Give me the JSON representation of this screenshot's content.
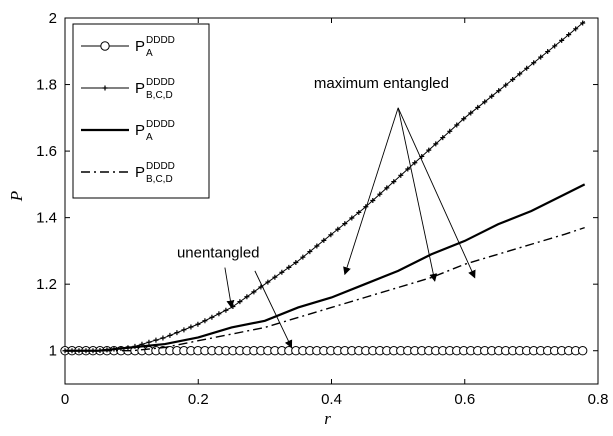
{
  "chart_data": {
    "type": "line",
    "xlabel": "r",
    "ylabel": "P",
    "xlim": [
      0,
      0.8
    ],
    "ylim": [
      0.9,
      2.0
    ],
    "xticks": [
      "0",
      "0.2",
      "0.4",
      "0.6",
      "0.8"
    ],
    "yticks": [
      "1",
      "1.2",
      "1.4",
      "1.6",
      "1.8",
      "2"
    ],
    "grid": false,
    "legend_position": "top-left",
    "series": [
      {
        "legend_main": "P",
        "legend_sup": "DDDD",
        "legend_sub": "A",
        "style": "circle-markers",
        "x": [
          0,
          0.1,
          0.2,
          0.3,
          0.4,
          0.5,
          0.6,
          0.7,
          0.78
        ],
        "y": [
          1.0,
          1.0,
          1.0,
          1.0,
          1.0,
          1.0,
          1.0,
          1.0,
          1.0
        ]
      },
      {
        "legend_main": "P",
        "legend_sup": "DDDD",
        "legend_sub": "B,C,D",
        "style": "star-markers",
        "x": [
          0,
          0.05,
          0.1,
          0.15,
          0.2,
          0.25,
          0.3,
          0.35,
          0.4,
          0.45,
          0.5,
          0.55,
          0.6,
          0.65,
          0.7,
          0.75,
          0.78
        ],
        "y": [
          1.0,
          1.0,
          1.01,
          1.04,
          1.08,
          1.13,
          1.2,
          1.27,
          1.35,
          1.43,
          1.52,
          1.61,
          1.7,
          1.78,
          1.86,
          1.94,
          1.99
        ]
      },
      {
        "legend_main": "P",
        "legend_sup": "DDDD",
        "legend_sub": "A",
        "style": "solid-thick",
        "x": [
          0,
          0.05,
          0.1,
          0.15,
          0.2,
          0.25,
          0.3,
          0.35,
          0.4,
          0.45,
          0.5,
          0.55,
          0.6,
          0.65,
          0.7,
          0.75,
          0.78
        ],
        "y": [
          1.0,
          1.0,
          1.01,
          1.02,
          1.04,
          1.07,
          1.09,
          1.13,
          1.16,
          1.2,
          1.24,
          1.29,
          1.33,
          1.38,
          1.42,
          1.47,
          1.5
        ]
      },
      {
        "legend_main": "P",
        "legend_sup": "DDDD",
        "legend_sub": "B,C,D",
        "style": "dash-dot",
        "x": [
          0,
          0.05,
          0.1,
          0.15,
          0.2,
          0.25,
          0.3,
          0.35,
          0.4,
          0.45,
          0.5,
          0.55,
          0.6,
          0.65,
          0.7,
          0.75,
          0.78
        ],
        "y": [
          1.0,
          1.0,
          1.0,
          1.01,
          1.03,
          1.05,
          1.07,
          1.1,
          1.13,
          1.16,
          1.19,
          1.22,
          1.26,
          1.29,
          1.32,
          1.35,
          1.37
        ]
      }
    ],
    "annotations": [
      {
        "text": "maximum entangled",
        "text_at": [
          0.475,
          1.79
        ],
        "arrows": [
          {
            "from": [
              0.5,
              1.73
            ],
            "to": [
              0.555,
              1.21
            ]
          },
          {
            "from": [
              0.5,
              1.73
            ],
            "to": [
              0.615,
              1.22
            ]
          },
          {
            "from": [
              0.5,
              1.73
            ],
            "to": [
              0.42,
              1.23
            ]
          }
        ]
      },
      {
        "text": "unentangled",
        "text_at": [
          0.23,
          1.28
        ],
        "arrows": [
          {
            "from": [
              0.24,
              1.25
            ],
            "to": [
              0.25,
              1.13
            ]
          },
          {
            "from": [
              0.285,
              1.24
            ],
            "to": [
              0.34,
              1.01
            ]
          }
        ]
      }
    ]
  }
}
